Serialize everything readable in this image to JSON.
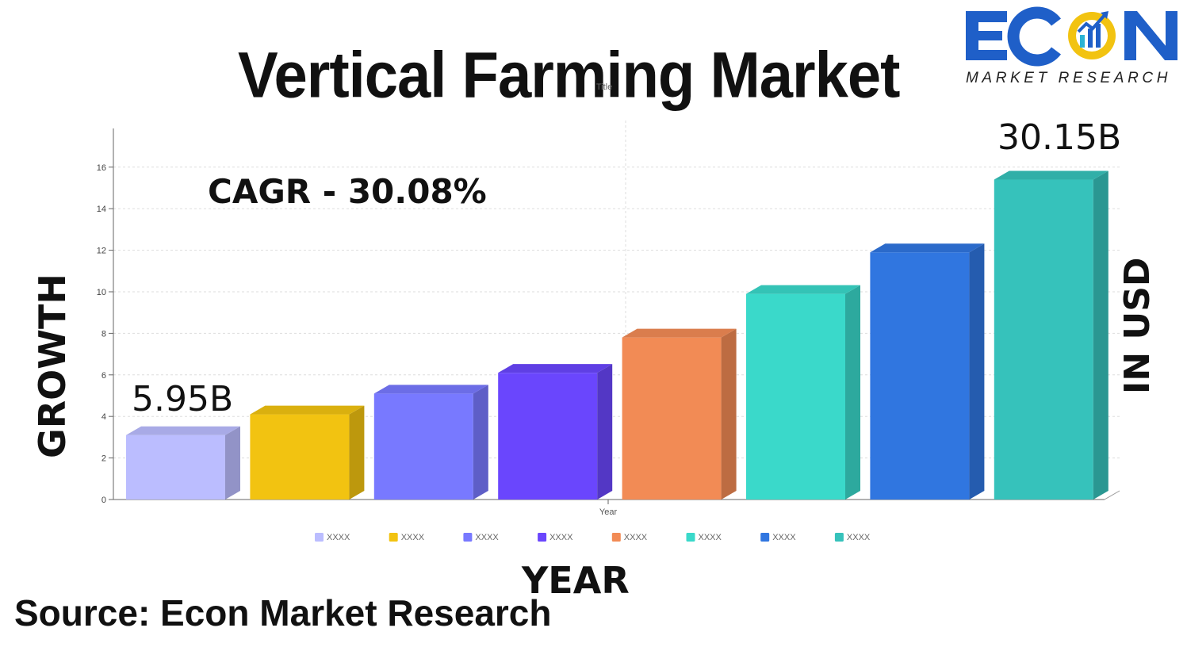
{
  "header": {
    "title": "Vertical Farming Market"
  },
  "logo": {
    "brand_text": "ECON",
    "sub_text": "MARKET RESEARCH"
  },
  "chart_data": {
    "type": "bar",
    "title": "Title",
    "xlabel": "Year",
    "ylabel": "",
    "ylim": [
      0,
      17
    ],
    "yticks": [
      0,
      2,
      4,
      6,
      8,
      10,
      12,
      14,
      16
    ],
    "grid": true,
    "legend_position": "bottom",
    "series": [
      {
        "name": "XXXX",
        "value": 3.1,
        "color": "#bbbdff"
      },
      {
        "name": "XXXX",
        "value": 4.1,
        "color": "#f2c311"
      },
      {
        "name": "XXXX",
        "value": 5.1,
        "color": "#7879ff"
      },
      {
        "name": "XXXX",
        "value": 6.1,
        "color": "#6a46fd"
      },
      {
        "name": "XXXX",
        "value": 7.8,
        "color": "#f28b55"
      },
      {
        "name": "XXXX",
        "value": 9.9,
        "color": "#3ad9ca"
      },
      {
        "name": "XXXX",
        "value": 11.9,
        "color": "#3076e0"
      },
      {
        "name": "XXXX",
        "value": 15.4,
        "color": "#36c2bb"
      }
    ],
    "annotations": {
      "first_value": "5.95B",
      "last_value": "30.15B",
      "cagr": "CAGR - 30.08%",
      "left_axis": "GROWTH",
      "right_axis": "IN USD",
      "bottom_axis": "YEAR"
    }
  },
  "footer": {
    "source": "Source: Econ Market Research"
  }
}
